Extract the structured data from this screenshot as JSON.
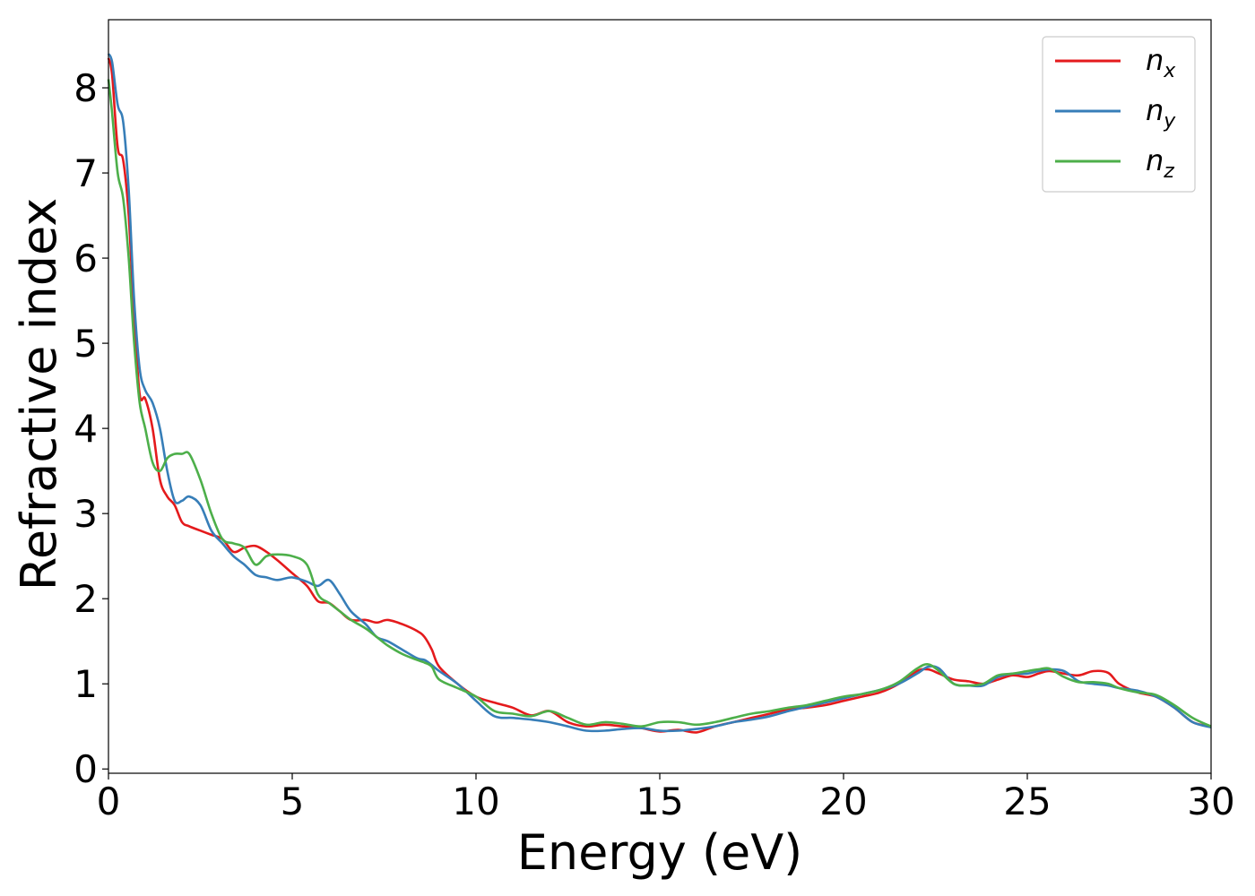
{
  "chart_data": {
    "type": "line",
    "title": "",
    "xlabel": "Energy (eV)",
    "ylabel": "Refractive index",
    "xlim": [
      0,
      30
    ],
    "ylim": [
      -0.05,
      8.8
    ],
    "xticks": [
      0,
      5,
      10,
      15,
      20,
      25,
      30
    ],
    "yticks": [
      0,
      1,
      2,
      3,
      4,
      5,
      6,
      7,
      8
    ],
    "grid": false,
    "legend_position": "top-right",
    "series": [
      {
        "name": "n",
        "subscript": "x",
        "color": "#e41a1c",
        "x": [
          0,
          0.1,
          0.25,
          0.4,
          0.55,
          0.7,
          0.85,
          1.0,
          1.2,
          1.4,
          1.6,
          1.8,
          2.0,
          2.2,
          2.5,
          2.8,
          3.1,
          3.4,
          3.7,
          4.0,
          4.3,
          4.6,
          5.0,
          5.4,
          5.7,
          6.0,
          6.3,
          6.6,
          7.0,
          7.3,
          7.6,
          8.0,
          8.4,
          8.6,
          8.8,
          9.0,
          9.5,
          10.0,
          10.5,
          11.0,
          11.5,
          12.0,
          12.5,
          13.0,
          13.5,
          14.0,
          14.5,
          15.0,
          15.5,
          16.0,
          16.5,
          17.0,
          17.5,
          18.0,
          18.5,
          19.0,
          19.5,
          20.0,
          20.5,
          21.0,
          21.5,
          22.0,
          22.3,
          22.6,
          23.0,
          23.4,
          23.8,
          24.2,
          24.6,
          25.0,
          25.3,
          25.6,
          26.0,
          26.4,
          26.8,
          27.2,
          27.5,
          28.0,
          28.5,
          29.0,
          29.5,
          30.0
        ],
        "y": [
          8.35,
          8.15,
          7.3,
          7.15,
          6.5,
          5.3,
          4.4,
          4.35,
          4.0,
          3.4,
          3.2,
          3.1,
          2.9,
          2.85,
          2.8,
          2.75,
          2.7,
          2.55,
          2.6,
          2.62,
          2.55,
          2.45,
          2.3,
          2.15,
          1.97,
          1.95,
          1.85,
          1.75,
          1.75,
          1.72,
          1.75,
          1.7,
          1.62,
          1.55,
          1.4,
          1.2,
          1.0,
          0.85,
          0.78,
          0.72,
          0.63,
          0.68,
          0.55,
          0.5,
          0.52,
          0.5,
          0.48,
          0.44,
          0.46,
          0.43,
          0.5,
          0.55,
          0.6,
          0.65,
          0.7,
          0.72,
          0.75,
          0.8,
          0.85,
          0.9,
          1.0,
          1.15,
          1.17,
          1.12,
          1.05,
          1.03,
          1.0,
          1.05,
          1.1,
          1.08,
          1.12,
          1.15,
          1.12,
          1.1,
          1.15,
          1.13,
          1.0,
          0.9,
          0.85,
          0.72,
          0.55,
          0.5
        ]
      },
      {
        "name": "n",
        "subscript": "y",
        "color": "#377eb8",
        "x": [
          0,
          0.1,
          0.25,
          0.4,
          0.55,
          0.7,
          0.85,
          1.0,
          1.2,
          1.4,
          1.6,
          1.8,
          2.0,
          2.2,
          2.5,
          2.8,
          3.1,
          3.4,
          3.7,
          4.0,
          4.3,
          4.6,
          5.0,
          5.4,
          5.7,
          6.0,
          6.3,
          6.6,
          7.0,
          7.3,
          7.6,
          8.0,
          8.4,
          8.6,
          8.8,
          9.0,
          9.5,
          10.0,
          10.5,
          11.0,
          11.5,
          12.0,
          12.5,
          13.0,
          13.5,
          14.0,
          14.5,
          15.0,
          15.5,
          16.0,
          16.5,
          17.0,
          17.5,
          18.0,
          18.5,
          19.0,
          19.5,
          20.0,
          20.5,
          21.0,
          21.5,
          22.0,
          22.3,
          22.6,
          23.0,
          23.4,
          23.8,
          24.2,
          24.6,
          25.0,
          25.3,
          25.6,
          26.0,
          26.4,
          26.8,
          27.2,
          27.5,
          28.0,
          28.5,
          29.0,
          29.5,
          30.0
        ],
        "y": [
          8.4,
          8.3,
          7.8,
          7.6,
          6.8,
          5.5,
          4.7,
          4.45,
          4.3,
          4.0,
          3.5,
          3.15,
          3.15,
          3.2,
          3.1,
          2.8,
          2.65,
          2.5,
          2.4,
          2.28,
          2.25,
          2.22,
          2.25,
          2.2,
          2.15,
          2.22,
          2.05,
          1.85,
          1.7,
          1.55,
          1.5,
          1.4,
          1.3,
          1.28,
          1.22,
          1.15,
          1.0,
          0.8,
          0.62,
          0.6,
          0.58,
          0.55,
          0.5,
          0.45,
          0.45,
          0.47,
          0.48,
          0.45,
          0.45,
          0.47,
          0.5,
          0.55,
          0.58,
          0.62,
          0.68,
          0.73,
          0.78,
          0.83,
          0.88,
          0.93,
          1.0,
          1.12,
          1.2,
          1.18,
          1.0,
          0.98,
          0.98,
          1.08,
          1.12,
          1.12,
          1.15,
          1.17,
          1.15,
          1.03,
          1.0,
          0.98,
          0.95,
          0.92,
          0.85,
          0.72,
          0.55,
          0.49
        ]
      },
      {
        "name": "n",
        "subscript": "z",
        "color": "#4daf4a",
        "x": [
          0,
          0.1,
          0.25,
          0.4,
          0.55,
          0.7,
          0.85,
          1.0,
          1.2,
          1.4,
          1.6,
          1.8,
          2.0,
          2.2,
          2.5,
          2.8,
          3.1,
          3.4,
          3.7,
          4.0,
          4.3,
          4.6,
          5.0,
          5.4,
          5.7,
          6.0,
          6.3,
          6.6,
          7.0,
          7.3,
          7.6,
          8.0,
          8.4,
          8.6,
          8.8,
          9.0,
          9.5,
          10.0,
          10.5,
          11.0,
          11.5,
          12.0,
          12.5,
          13.0,
          13.5,
          14.0,
          14.5,
          15.0,
          15.5,
          16.0,
          16.5,
          17.0,
          17.5,
          18.0,
          18.5,
          19.0,
          19.5,
          20.0,
          20.5,
          21.0,
          21.5,
          22.0,
          22.3,
          22.6,
          23.0,
          23.4,
          23.8,
          24.2,
          24.6,
          25.0,
          25.3,
          25.6,
          26.0,
          26.4,
          26.8,
          27.2,
          27.5,
          28.0,
          28.5,
          29.0,
          29.5,
          30.0
        ],
        "y": [
          8.1,
          7.7,
          7.0,
          6.7,
          6.0,
          5.0,
          4.3,
          4.0,
          3.6,
          3.5,
          3.65,
          3.7,
          3.7,
          3.7,
          3.4,
          3.0,
          2.7,
          2.65,
          2.6,
          2.4,
          2.5,
          2.52,
          2.5,
          2.4,
          2.05,
          1.95,
          1.85,
          1.75,
          1.65,
          1.55,
          1.45,
          1.35,
          1.28,
          1.25,
          1.2,
          1.05,
          0.95,
          0.85,
          0.68,
          0.65,
          0.62,
          0.68,
          0.6,
          0.52,
          0.55,
          0.53,
          0.5,
          0.55,
          0.55,
          0.52,
          0.55,
          0.6,
          0.65,
          0.68,
          0.72,
          0.75,
          0.8,
          0.85,
          0.88,
          0.93,
          1.02,
          1.18,
          1.23,
          1.15,
          1.0,
          0.98,
          1.0,
          1.1,
          1.12,
          1.15,
          1.17,
          1.18,
          1.08,
          1.02,
          1.02,
          1.0,
          0.95,
          0.9,
          0.87,
          0.75,
          0.6,
          0.5
        ]
      }
    ]
  }
}
